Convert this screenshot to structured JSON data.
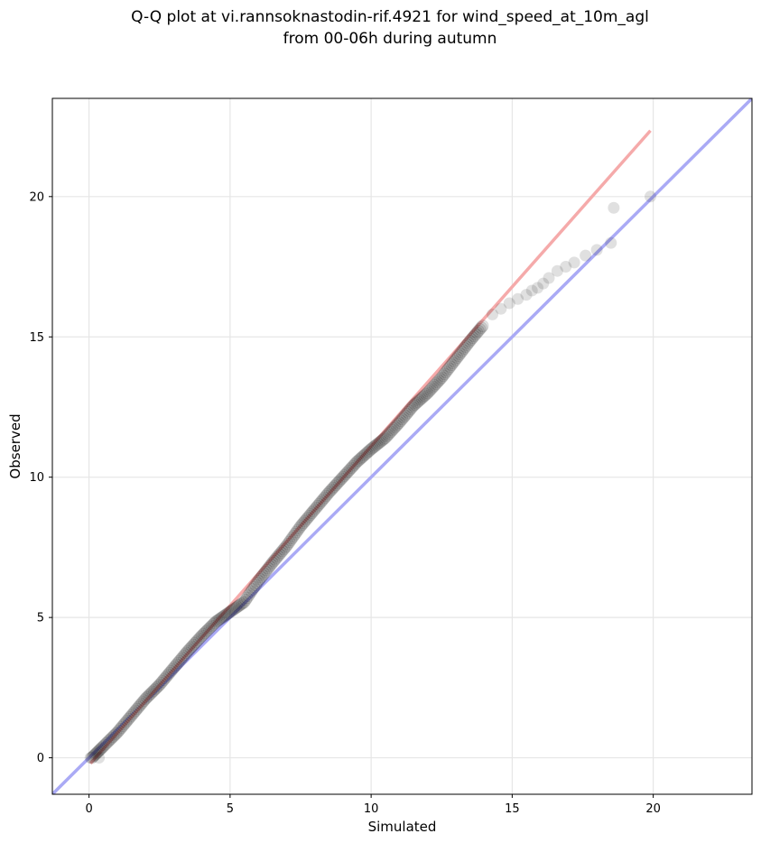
{
  "chart_data": {
    "type": "scatter",
    "title": [
      "Q-Q plot at vi.rannsoknastodin-rif.4921 for wind_speed_at_10m_agl",
      "from 00-06h during autumn"
    ],
    "xlabel": "Simulated",
    "ylabel": "Observed",
    "xlim": [
      -1.3,
      23.5
    ],
    "ylim": [
      -1.3,
      23.5
    ],
    "x_ticks": [
      0,
      5,
      10,
      15,
      20
    ],
    "y_ticks": [
      0,
      5,
      10,
      15,
      20
    ],
    "x_tick_labels": [
      "0",
      "5",
      "10",
      "15",
      "20"
    ],
    "y_tick_labels": [
      "0",
      "5",
      "10",
      "15",
      "20"
    ],
    "grid": true,
    "point_color": "#000000",
    "identity_line_color": "#aaaaf5",
    "fit_line_color": "#f5aaaa",
    "fit_line": {
      "x": [
        0.05,
        19.9
      ],
      "y": [
        -0.2,
        22.35
      ]
    },
    "qq_curve": {
      "x": [
        0.1,
        0.5,
        1.0,
        1.5,
        2.0,
        2.5,
        3.0,
        3.5,
        4.0,
        4.5,
        5.0,
        5.5,
        6.0,
        6.5,
        7.0,
        7.5,
        8.0,
        8.5,
        9.0,
        9.5,
        10.0,
        10.5,
        11.0,
        11.5,
        12.0,
        12.5,
        13.0,
        13.5,
        14.0
      ],
      "y": [
        0.0,
        0.4,
        0.9,
        1.5,
        2.1,
        2.6,
        3.2,
        3.8,
        4.35,
        4.85,
        5.2,
        5.55,
        6.3,
        6.95,
        7.55,
        8.25,
        8.85,
        9.45,
        10.0,
        10.55,
        11.0,
        11.4,
        11.95,
        12.55,
        13.0,
        13.55,
        14.2,
        14.85,
        15.45
      ]
    },
    "tail_points": {
      "x": [
        0.05,
        0.35,
        14.3,
        14.6,
        14.9,
        15.2,
        15.5,
        15.7,
        15.9,
        16.1,
        16.3,
        16.6,
        16.9,
        17.2,
        17.6,
        18.0,
        18.5,
        18.6,
        19.9
      ],
      "y": [
        0.0,
        0.0,
        15.8,
        16.0,
        16.2,
        16.35,
        16.5,
        16.65,
        16.75,
        16.9,
        17.1,
        17.35,
        17.5,
        17.65,
        17.9,
        18.1,
        18.35,
        19.6,
        20.0
      ]
    }
  }
}
